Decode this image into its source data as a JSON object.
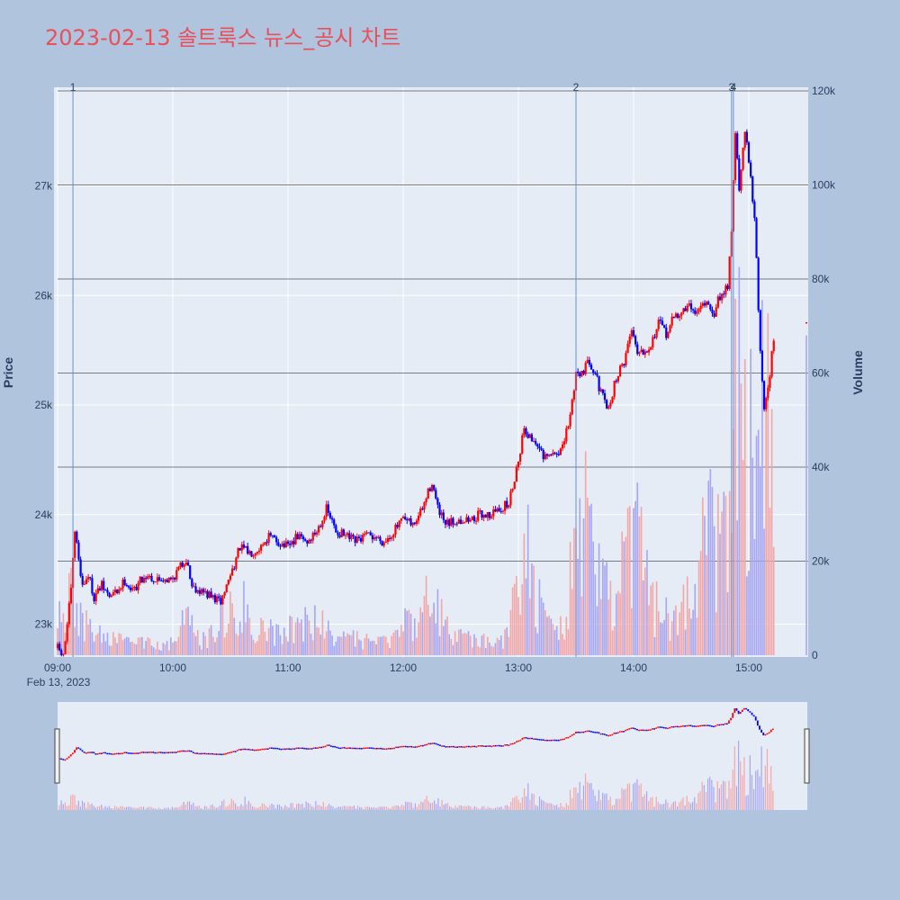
{
  "title": "2023-02-13 솔트룩스 뉴스_공시 차트",
  "colors": {
    "page_bg": "#b0c4de",
    "plot_bg": "#e5ecf6",
    "up": "#ff0000",
    "down": "#0000ff",
    "up_volume": "#f4a6a6",
    "down_volume": "#a6a6f4",
    "title": "#e8505b",
    "axis_text": "#2a3f5f",
    "event_line": "#6c8ecb",
    "volume_grid": "#555566"
  },
  "chart_data": {
    "type": "candlestick",
    "date_label": "Feb 13, 2023",
    "x_ticks": [
      "09:00",
      "10:00",
      "11:00",
      "12:00",
      "13:00",
      "14:00",
      "15:00"
    ],
    "xlim": [
      "09:00",
      "15:30"
    ],
    "price_axis": {
      "label": "Price",
      "range": [
        22700,
        27900
      ],
      "ticks": [
        23000,
        24000,
        25000,
        26000,
        27000
      ],
      "tick_labels": [
        "23k",
        "24k",
        "25k",
        "26k",
        "27k"
      ]
    },
    "volume_axis": {
      "label": "Volume",
      "range": [
        0,
        120000
      ],
      "ticks": [
        0,
        20000,
        40000,
        60000,
        80000,
        100000,
        120000
      ],
      "tick_labels": [
        "0",
        "20k",
        "40k",
        "60k",
        "80k",
        "100k",
        "120k"
      ]
    },
    "price_path": [
      [
        "09:00",
        22780
      ],
      [
        "09:03",
        22700
      ],
      [
        "09:07",
        23300
      ],
      [
        "09:09",
        23850
      ],
      [
        "09:11",
        23600
      ],
      [
        "09:13",
        23350
      ],
      [
        "09:16",
        23450
      ],
      [
        "09:19",
        23250
      ],
      [
        "09:23",
        23350
      ],
      [
        "09:27",
        23250
      ],
      [
        "09:31",
        23300
      ],
      [
        "09:35",
        23400
      ],
      [
        "09:39",
        23300
      ],
      [
        "09:43",
        23400
      ],
      [
        "09:47",
        23450
      ],
      [
        "09:51",
        23400
      ],
      [
        "09:55",
        23420
      ],
      [
        "09:59",
        23400
      ],
      [
        "10:03",
        23500
      ],
      [
        "10:07",
        23600
      ],
      [
        "10:10",
        23350
      ],
      [
        "10:15",
        23300
      ],
      [
        "10:20",
        23250
      ],
      [
        "10:25",
        23200
      ],
      [
        "10:30",
        23450
      ],
      [
        "10:35",
        23700
      ],
      [
        "10:40",
        23650
      ],
      [
        "10:45",
        23700
      ],
      [
        "10:50",
        23800
      ],
      [
        "10:55",
        23750
      ],
      [
        "11:00",
        23700
      ],
      [
        "11:05",
        23800
      ],
      [
        "11:10",
        23750
      ],
      [
        "11:15",
        23850
      ],
      [
        "11:20",
        24050
      ],
      [
        "11:25",
        23850
      ],
      [
        "11:30",
        23800
      ],
      [
        "11:35",
        23750
      ],
      [
        "11:40",
        23800
      ],
      [
        "11:45",
        23800
      ],
      [
        "11:50",
        23750
      ],
      [
        "11:55",
        23850
      ],
      [
        "12:00",
        23950
      ],
      [
        "12:05",
        23900
      ],
      [
        "12:10",
        24050
      ],
      [
        "12:15",
        24300
      ],
      [
        "12:18",
        24050
      ],
      [
        "12:22",
        23900
      ],
      [
        "12:28",
        23950
      ],
      [
        "12:35",
        23950
      ],
      [
        "12:40",
        24000
      ],
      [
        "12:45",
        24000
      ],
      [
        "12:50",
        24050
      ],
      [
        "12:55",
        24100
      ],
      [
        "13:00",
        24500
      ],
      [
        "13:03",
        24800
      ],
      [
        "13:06",
        24700
      ],
      [
        "13:10",
        24650
      ],
      [
        "13:13",
        24500
      ],
      [
        "13:18",
        24550
      ],
      [
        "13:23",
        24600
      ],
      [
        "13:27",
        24900
      ],
      [
        "13:30",
        25300
      ],
      [
        "13:33",
        25300
      ],
      [
        "13:37",
        25400
      ],
      [
        "13:40",
        25300
      ],
      [
        "13:43",
        25100
      ],
      [
        "13:47",
        24950
      ],
      [
        "13:50",
        25200
      ],
      [
        "13:55",
        25400
      ],
      [
        "13:59",
        25700
      ],
      [
        "14:02",
        25500
      ],
      [
        "14:05",
        25500
      ],
      [
        "14:09",
        25550
      ],
      [
        "14:13",
        25750
      ],
      [
        "14:17",
        25650
      ],
      [
        "14:21",
        25800
      ],
      [
        "14:25",
        25850
      ],
      [
        "14:29",
        25900
      ],
      [
        "14:33",
        25850
      ],
      [
        "14:37",
        25950
      ],
      [
        "14:41",
        25800
      ],
      [
        "14:45",
        26000
      ],
      [
        "14:49",
        26100
      ],
      [
        "14:51",
        26600
      ],
      [
        "14:53",
        27500
      ],
      [
        "14:55",
        26950
      ],
      [
        "14:58",
        27500
      ],
      [
        "15:01",
        27100
      ],
      [
        "15:03",
        26700
      ],
      [
        "15:06",
        25500
      ],
      [
        "15:08",
        24950
      ],
      [
        "15:11",
        25300
      ],
      [
        "15:13",
        25600
      ]
    ],
    "volume_path": [
      [
        "09:00",
        8000
      ],
      [
        "09:03",
        9000
      ],
      [
        "09:07",
        16000
      ],
      [
        "09:09",
        15000
      ],
      [
        "09:11",
        9000
      ],
      [
        "09:20",
        5000
      ],
      [
        "09:35",
        3000
      ],
      [
        "10:00",
        3000
      ],
      [
        "10:07",
        9000
      ],
      [
        "10:15",
        3000
      ],
      [
        "10:35",
        14000
      ],
      [
        "10:45",
        6000
      ],
      [
        "11:00",
        7000
      ],
      [
        "11:15",
        8000
      ],
      [
        "11:30",
        4000
      ],
      [
        "11:50",
        3000
      ],
      [
        "12:10",
        12000
      ],
      [
        "12:15",
        14000
      ],
      [
        "12:25",
        5000
      ],
      [
        "12:45",
        3000
      ],
      [
        "12:55",
        5000
      ],
      [
        "13:00",
        20000
      ],
      [
        "13:05",
        25000
      ],
      [
        "13:10",
        13000
      ],
      [
        "13:15",
        6000
      ],
      [
        "13:25",
        8000
      ],
      [
        "13:28",
        32000
      ],
      [
        "13:33",
        40000
      ],
      [
        "13:37",
        28000
      ],
      [
        "13:43",
        16000
      ],
      [
        "13:50",
        12000
      ],
      [
        "13:58",
        28000
      ],
      [
        "14:00",
        33000
      ],
      [
        "14:05",
        20000
      ],
      [
        "14:10",
        12000
      ],
      [
        "14:20",
        10000
      ],
      [
        "14:30",
        18000
      ],
      [
        "14:40",
        30000
      ],
      [
        "14:45",
        26000
      ],
      [
        "14:50",
        33000
      ],
      [
        "14:52",
        65000
      ],
      [
        "14:55",
        75000
      ],
      [
        "14:58",
        58000
      ],
      [
        "15:00",
        52000
      ],
      [
        "15:03",
        42000
      ],
      [
        "15:06",
        46000
      ],
      [
        "15:08",
        62000
      ],
      [
        "15:11",
        58000
      ],
      [
        "15:13",
        38000
      ]
    ],
    "last_point": [
      "15:30",
      25750
    ],
    "last_volume": [
      "15:30",
      68000
    ],
    "event_markers": [
      {
        "label": "1",
        "time": "09:08"
      },
      {
        "label": "2",
        "time": "13:30"
      },
      {
        "label": "3",
        "time": "14:51"
      },
      {
        "label": "4",
        "time": "14:52"
      }
    ],
    "range_slider": true,
    "grid": true
  }
}
